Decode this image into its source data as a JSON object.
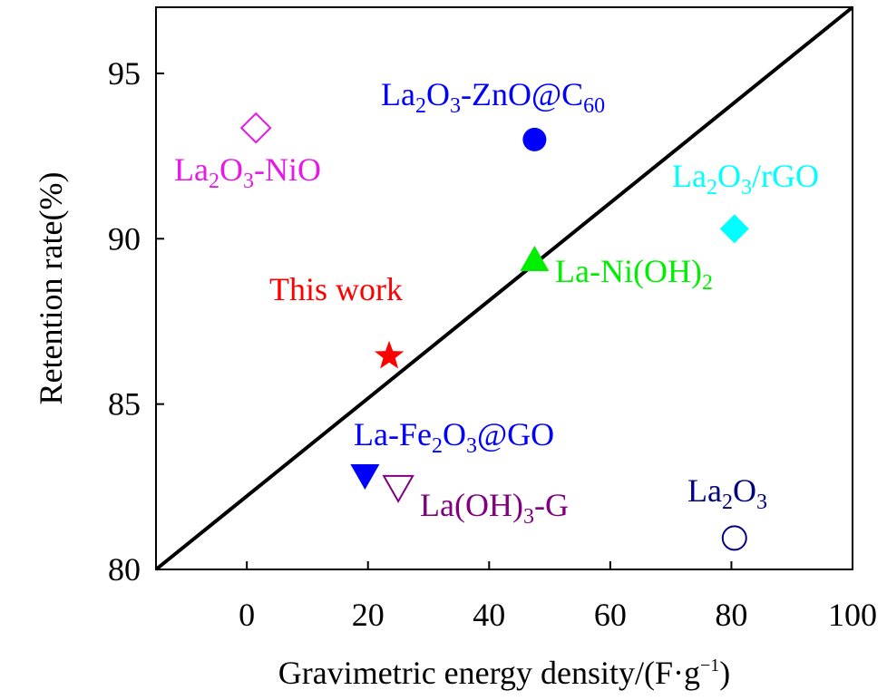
{
  "chart_data": {
    "type": "scatter",
    "xlabel_parts": [
      "Gravimetric energy density/(F·g",
      "−1",
      ")"
    ],
    "ylabel": "Retention rate(%)",
    "xlim": [
      -15,
      100
    ],
    "ylim": [
      80,
      97
    ],
    "x_ticks": [
      0,
      20,
      40,
      60,
      80,
      100
    ],
    "y_ticks": [
      80,
      85,
      90,
      95
    ],
    "trend_line": {
      "x": [
        -15,
        100
      ],
      "y": [
        80,
        97
      ]
    },
    "points": [
      {
        "name": "La2O3-ZnO@C60",
        "label_parts": [
          "La",
          "2",
          "O",
          "3",
          "-ZnO@C",
          "60"
        ],
        "x": 47.5,
        "y": 93.0,
        "marker": "circle-filled",
        "color": "#0000ff"
      },
      {
        "name": "La2O3-NiO",
        "label_parts": [
          "La",
          "2",
          "O",
          "3",
          "-NiO"
        ],
        "x": 1.5,
        "y": 93.35,
        "marker": "diamond-open",
        "color": "#e619e6"
      },
      {
        "name": "La2O3/rGO",
        "label_parts": [
          "La",
          "2",
          "O",
          "3",
          "/rGO"
        ],
        "x": 80.5,
        "y": 90.3,
        "marker": "diamond-filled",
        "color": "#00ffff"
      },
      {
        "name": "La-Ni(OH)2",
        "label_parts": [
          "La-Ni(OH)",
          "2",
          ""
        ],
        "x": 47.5,
        "y": 89.35,
        "marker": "triangle-up-filled",
        "color": "#00ee00"
      },
      {
        "name": "This work",
        "label_parts": [
          "This work"
        ],
        "x": 23.5,
        "y": 86.45,
        "marker": "star",
        "color": "#ff0000"
      },
      {
        "name": "La-Fe2O3@GO",
        "label_parts": [
          "La-Fe",
          "2",
          "O",
          "3",
          "@GO"
        ],
        "x": 19.5,
        "y": 82.85,
        "marker": "triangle-down-filled",
        "color": "#0000ff"
      },
      {
        "name": "La(OH)3-G",
        "label_parts": [
          "La(OH)",
          "3",
          "-G"
        ],
        "x": 25.0,
        "y": 82.5,
        "marker": "triangle-down-open",
        "color": "#800080"
      },
      {
        "name": "La2O3",
        "label_parts": [
          "La",
          "2",
          "O",
          "3"
        ],
        "x": 80.5,
        "y": 80.95,
        "marker": "circle-open",
        "color": "#000080"
      }
    ]
  }
}
